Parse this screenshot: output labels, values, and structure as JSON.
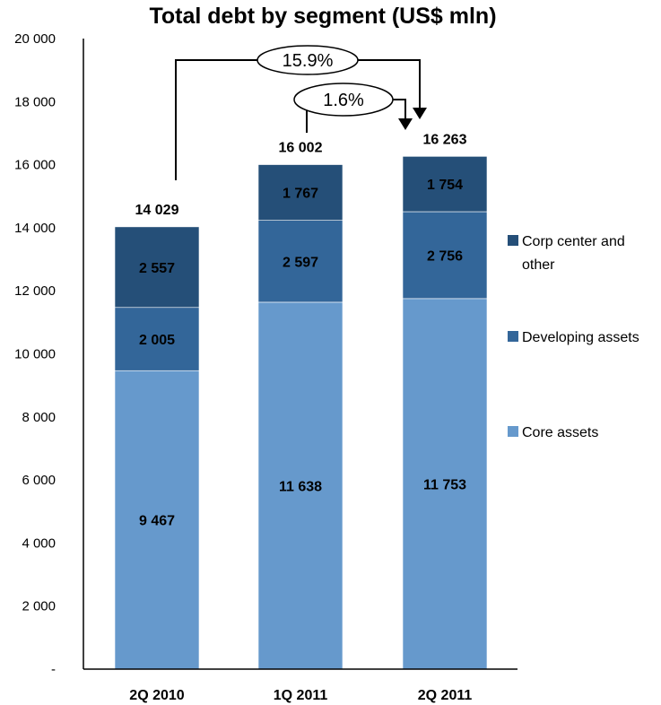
{
  "chart_data": {
    "type": "bar",
    "stacked": true,
    "title": "Total debt by segment (US$ mln)",
    "xlabel": "",
    "ylabel": "",
    "ylim": [
      0,
      20000
    ],
    "y_ticks": [
      "-",
      "2 000",
      "4 000",
      "6 000",
      "8 000",
      "10 000",
      "12 000",
      "14 000",
      "16 000",
      "18 000",
      "20 000"
    ],
    "y_tick_values": [
      0,
      2000,
      4000,
      6000,
      8000,
      10000,
      12000,
      14000,
      16000,
      18000,
      20000
    ],
    "categories": [
      "2Q 2010",
      "1Q 2011",
      "2Q 2011"
    ],
    "series": [
      {
        "name": "Core assets",
        "color": "#6699CC",
        "values": [
          9467,
          11638,
          11753
        ],
        "labels": [
          "9 467",
          "11 638",
          "11 753"
        ]
      },
      {
        "name": "Developing assets",
        "color": "#336699",
        "values": [
          2005,
          2597,
          2756
        ],
        "labels": [
          "2 005",
          "2 597",
          "2 756"
        ]
      },
      {
        "name": "Corp center and other",
        "color": "#254F78",
        "values": [
          2557,
          1767,
          1754
        ],
        "labels": [
          "2 557",
          "1 767",
          "1 754"
        ]
      }
    ],
    "totals": [
      14029,
      16002,
      16263
    ],
    "total_labels": [
      "14 029",
      "16 002",
      "16 263"
    ],
    "legend": {
      "placement": "right",
      "entries": [
        {
          "lines": [
            "Corp center and",
            "other"
          ],
          "color": "#254F78"
        },
        {
          "lines": [
            "Developing assets"
          ],
          "color": "#336699"
        },
        {
          "lines": [
            "Core assets"
          ],
          "color": "#6699CC"
        }
      ]
    },
    "annotations": [
      {
        "text": "15.9%",
        "from": "2Q 2010",
        "to": "2Q 2011"
      },
      {
        "text": "1.6%",
        "from": "1Q 2011",
        "to": "2Q 2011"
      }
    ],
    "grid": false
  }
}
